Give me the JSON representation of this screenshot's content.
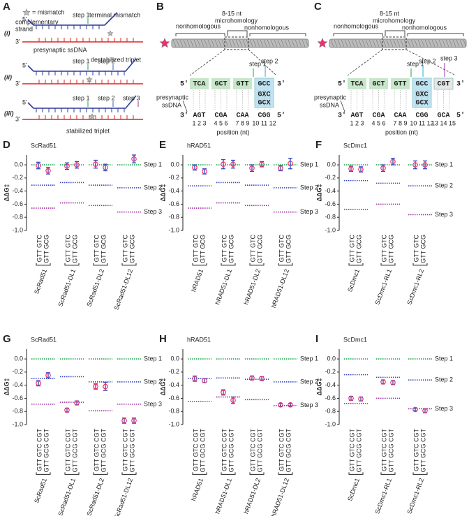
{
  "panel_a": {
    "label": "A",
    "mismatch_legend": "= mismatch",
    "terminal_mismatch": "terminal mismatch",
    "complementary_strand": [
      "complementary",
      "strand"
    ],
    "presynaptic_ssdna": "presynaptic ssDNA",
    "destabilized_triplet": "destabilized triplet",
    "stabilized_triplet": "stabilized triplet",
    "end5": "5'",
    "end3": "3'",
    "rows": [
      {
        "label": "(i)",
        "steps": [
          "step 1"
        ]
      },
      {
        "label": "(ii)",
        "steps": [
          "step 1",
          "step 2"
        ]
      },
      {
        "label": "(iii)",
        "steps": [
          "step 1",
          "step 2",
          "step 3"
        ]
      }
    ]
  },
  "panel_b": {
    "label": "B",
    "nonhomologous": "nonhomologous",
    "microhomology": [
      "8-15 nt",
      "microhomology"
    ],
    "presynaptic_ssdna": [
      "presynaptic",
      "ssDNA"
    ],
    "top": [
      "TCA",
      "GCT",
      "GTT",
      "GCC"
    ],
    "bottom": [
      "AGT",
      "CGA",
      "CAA",
      "CGG"
    ],
    "positions": [
      "1 2 3",
      "4 5 6",
      "7 8 9",
      "10 11 12"
    ],
    "mismatch_rows": [
      "GXC",
      "GCX"
    ],
    "steps": [
      "step 1",
      "step 2"
    ],
    "xlabel": "position (nt)",
    "end5": "5'",
    "end3": "3'"
  },
  "panel_c": {
    "label": "C",
    "nonhomologous": "nonhomologous",
    "microhomology": [
      "8-15 nt",
      "microhomology"
    ],
    "presynaptic_ssdna": [
      "presynaptic",
      "ssDNA"
    ],
    "top": [
      "TCA",
      "GCT",
      "GTT",
      "GCC",
      "CGT"
    ],
    "bottom": [
      "AGT",
      "CGA",
      "CAA",
      "CGG",
      "GCA"
    ],
    "positions": [
      "1 2 3",
      "4 5 6",
      "7 8 9",
      "10 11 12",
      "13 14 15"
    ],
    "mismatch_rows": [
      "GXC",
      "GCX"
    ],
    "steps": [
      "step 1",
      "step 2",
      "step 3"
    ],
    "xlabel": "position (nt)",
    "end5": "5'",
    "end3": "3'"
  },
  "chart_data": [
    {
      "type": "errorbar",
      "label": "D",
      "title": "ScRad51",
      "ylabel": "ΔΔG‡",
      "ylim": [
        -1,
        0.15
      ],
      "yticks": [
        {
          "value": 0,
          "label": "0.0"
        },
        -0.2,
        -0.4,
        -0.6,
        -0.8,
        {
          "value": -1,
          "label": "-1.0"
        }
      ],
      "categories": [
        "ScRad51",
        "ScRad51-DL1",
        "ScRad51-DL2",
        "ScRad51-DL12"
      ],
      "point_labels": [
        "GTT GTC",
        "GTT GCG"
      ],
      "series": [
        {
          "color": "#e8336d",
          "error_color": "#3346c2",
          "values": [
            -0.01,
            -0.02,
            0.01,
            null
          ],
          "errors": [
            0.05,
            0.05,
            0.06,
            null
          ]
        },
        {
          "color": "#e8336d",
          "error_color": "#3346c2",
          "values": [
            -0.09,
            0.0,
            -0.04,
            0.09
          ],
          "errors": [
            0.05,
            0.05,
            0.05,
            0.06
          ]
        }
      ],
      "steps": [
        {
          "name": "Step 1",
          "color": "#1aa64a",
          "values": [
            0,
            0,
            0,
            0
          ]
        },
        {
          "name": "Step 2",
          "color": "#3346c2",
          "values": [
            -0.31,
            -0.27,
            -0.31,
            -0.35
          ]
        },
        {
          "name": "Step 3",
          "color": "#9b2fa0",
          "values": [
            -0.66,
            -0.58,
            -0.62,
            -0.72
          ]
        }
      ]
    },
    {
      "type": "errorbar",
      "label": "E",
      "title": "hRAD51",
      "ylabel": "ΔΔG‡",
      "ylim": [
        -1,
        0.15
      ],
      "yticks": [
        {
          "value": 0,
          "label": "0.0"
        },
        -0.2,
        -0.4,
        -0.6,
        -0.8,
        {
          "value": -1,
          "label": "-1.0"
        }
      ],
      "categories": [
        "hRAD51",
        "hRAD51-DL1",
        "hRAD51-DL2",
        "hRAD51-DL12"
      ],
      "point_labels": [
        "GTT GTC",
        "GTT GCG"
      ],
      "series": [
        {
          "color": "#e8336d",
          "error_color": "#3346c2",
          "values": [
            -0.04,
            0.01,
            -0.05,
            -0.05
          ],
          "errors": [
            0.04,
            0.07,
            0.05,
            0.04
          ]
        },
        {
          "color": "#e8336d",
          "error_color": "#3346c2",
          "values": [
            -0.1,
            0.01,
            0.01,
            0.02
          ],
          "errors": [
            0.04,
            0.06,
            0.04,
            0.08
          ]
        }
      ],
      "steps": [
        {
          "name": "Step 1",
          "color": "#1aa64a",
          "values": [
            0,
            0,
            0,
            0
          ]
        },
        {
          "name": "Step 2",
          "color": "#3346c2",
          "values": [
            -0.32,
            -0.27,
            -0.31,
            -0.35
          ]
        },
        {
          "name": "Step 3",
          "color": "#9b2fa0",
          "values": [
            -0.66,
            -0.58,
            -0.62,
            -0.72
          ]
        }
      ]
    },
    {
      "type": "errorbar",
      "label": "F",
      "title": "ScDmc1",
      "ylabel": "ΔΔG‡",
      "ylim": [
        -1,
        0.15
      ],
      "yticks": [
        {
          "value": 0,
          "label": "0.0"
        },
        -0.2,
        -0.4,
        -0.6,
        -0.8,
        {
          "value": -1,
          "label": "-1.0"
        }
      ],
      "categories": [
        "ScDmc1",
        "ScDmc1-RL1",
        "ScDmc1-RL2"
      ],
      "point_labels": [
        "GTT GTC",
        "GTT GCG"
      ],
      "series": [
        {
          "color": "#e8336d",
          "error_color": "#3346c2",
          "values": [
            -0.06,
            -0.05,
            0.0
          ],
          "errors": [
            0.04,
            0.05,
            0.06
          ]
        },
        {
          "color": "#e8336d",
          "error_color": "#3346c2",
          "values": [
            -0.07,
            0.05,
            0.0
          ],
          "errors": [
            0.04,
            0.05,
            0.06
          ]
        }
      ],
      "steps": [
        {
          "name": "Step 1",
          "color": "#1aa64a",
          "values": [
            0,
            0,
            0
          ]
        },
        {
          "name": "Step 2",
          "color": "#3346c2",
          "values": [
            -0.24,
            -0.28,
            -0.32
          ]
        },
        {
          "name": "Step 3",
          "color": "#9b2fa0",
          "values": [
            -0.68,
            -0.6,
            -0.76
          ]
        }
      ]
    },
    {
      "type": "errorbar",
      "label": "G",
      "title": "ScRad51",
      "ylabel": "ΔΔG‡",
      "ylim": [
        -1,
        0.15
      ],
      "yticks": [
        {
          "value": 0,
          "label": "0.0"
        },
        -0.2,
        -0.4,
        -0.6,
        -0.8,
        {
          "value": -1,
          "label": "-1.0"
        }
      ],
      "categories": [
        "ScRad51",
        "ScRad51-DL1",
        "ScRad51-DL2",
        "ScRad51-DL12"
      ],
      "point_labels": [
        "GTT GTC CGT",
        "GTT GCG CGT"
      ],
      "series": [
        {
          "color": "#e8336d",
          "error_color": "#3346c2",
          "values": [
            -0.37,
            -0.78,
            -0.42,
            -0.94
          ],
          "errors": [
            0.04,
            0.03,
            0.04,
            0.04
          ]
        },
        {
          "color": "#e8336d",
          "error_color": "#3346c2",
          "values": [
            -0.25,
            -0.67,
            -0.42,
            -0.94
          ],
          "errors": [
            0.04,
            0.03,
            0.06,
            0.04
          ]
        }
      ],
      "steps": [
        {
          "name": "Step 1",
          "color": "#1aa64a",
          "values": [
            0,
            0,
            0,
            0
          ]
        },
        {
          "name": "Step 2",
          "color": "#3346c2",
          "values": [
            -0.3,
            -0.27,
            -0.35,
            -0.35
          ]
        },
        {
          "name": "Step 3",
          "color": "#9b2fa0",
          "values": [
            -0.69,
            -0.66,
            -0.79,
            -0.69
          ]
        }
      ]
    },
    {
      "type": "errorbar",
      "label": "H",
      "title": "hRAD51",
      "ylabel": "ΔΔG‡",
      "ylim": [
        -1,
        0.15
      ],
      "yticks": [
        {
          "value": 0,
          "label": "0.0"
        },
        -0.2,
        -0.4,
        -0.6,
        -0.8,
        {
          "value": -1,
          "label": "-1.0"
        }
      ],
      "categories": [
        "hRAD51",
        "hRAD51-DL1",
        "hRAD51-DL2",
        "hRAD51-DL12"
      ],
      "point_labels": [
        "GTT GTC CGT",
        "GTT GCG CGT"
      ],
      "series": [
        {
          "color": "#e8336d",
          "error_color": "#3346c2",
          "values": [
            -0.3,
            -0.51,
            -0.29,
            -0.7
          ],
          "errors": [
            0.04,
            0.04,
            0.03,
            0.02
          ]
        },
        {
          "color": "#e8336d",
          "error_color": "#3346c2",
          "values": [
            -0.33,
            -0.63,
            -0.3,
            -0.7
          ],
          "errors": [
            0.03,
            0.05,
            0.03,
            0.02
          ]
        }
      ],
      "steps": [
        {
          "name": "Step 1",
          "color": "#1aa64a",
          "values": [
            0,
            0,
            0,
            0
          ]
        },
        {
          "name": "Step 2",
          "color": "#3346c2",
          "values": [
            -0.3,
            -0.29,
            -0.31,
            -0.35
          ]
        },
        {
          "name": "Step 3",
          "color": "#9b2fa0",
          "values": [
            -0.65,
            -0.58,
            -0.62,
            -0.71
          ]
        }
      ]
    },
    {
      "type": "errorbar",
      "label": "I",
      "title": "ScDmc1",
      "ylabel": "ΔΔG‡",
      "ylim": [
        -1,
        0.15
      ],
      "yticks": [
        {
          "value": 0,
          "label": "0.0"
        },
        -0.2,
        -0.4,
        -0.6,
        -0.8,
        {
          "value": -1,
          "label": "-1.0"
        }
      ],
      "categories": [
        "ScDmc1",
        "ScDmc1-RL1",
        "ScDmc1-RL2"
      ],
      "point_labels": [
        "GTT GTC CGT",
        "GTT GCG CGT"
      ],
      "series": [
        {
          "color": "#e8336d",
          "error_color": "#3346c2",
          "values": [
            -0.6,
            -0.35,
            -0.77
          ],
          "errors": [
            0.03,
            0.03,
            0.02
          ]
        },
        {
          "color": "#e8336d",
          "error_color": "#3346c2",
          "values": [
            -0.61,
            -0.36,
            -0.79
          ],
          "errors": [
            0.03,
            0.03,
            0.03
          ]
        }
      ],
      "steps": [
        {
          "name": "Step 1",
          "color": "#1aa64a",
          "values": [
            0,
            0,
            0
          ]
        },
        {
          "name": "Step 2",
          "color": "#3346c2",
          "values": [
            -0.24,
            -0.28,
            -0.32
          ]
        },
        {
          "name": "Step 3",
          "color": "#9b2fa0",
          "values": [
            -0.68,
            -0.6,
            -0.76
          ]
        }
      ]
    }
  ]
}
